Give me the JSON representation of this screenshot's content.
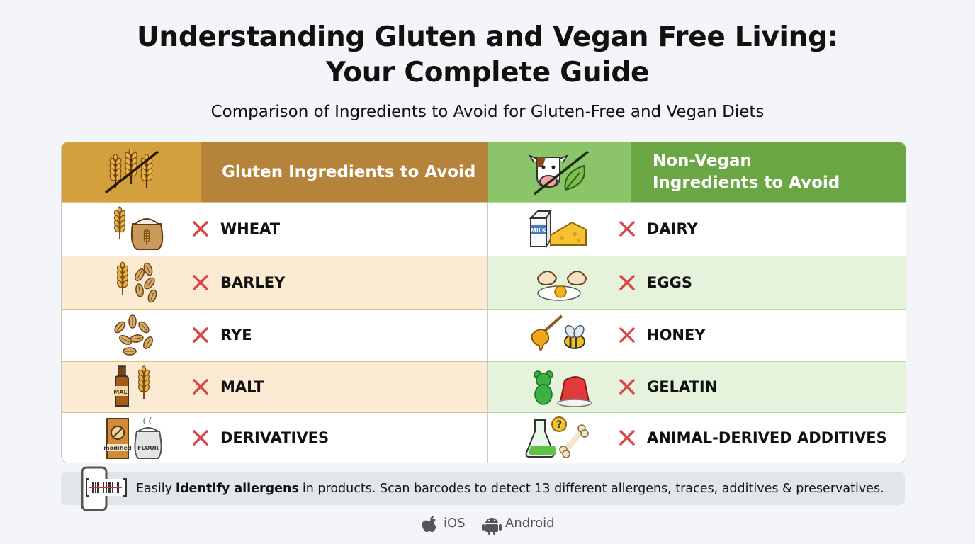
{
  "header": {
    "title_lines": [
      "Understanding Gluten and Vegan Free Living:",
      "Your Complete Guide"
    ],
    "subtitle": "Comparison of Ingredients to Avoid for Gluten-Free and Vegan Diets"
  },
  "table": {
    "columns": [
      {
        "title_lines": [
          "Gluten Ingredients to Avoid"
        ]
      },
      {
        "title_lines": [
          "Non-Vegan",
          "Ingredients to Avoid"
        ]
      }
    ],
    "rows": [
      [
        "WHEAT",
        "DAIRY"
      ],
      [
        "BARLEY",
        "EGGS"
      ],
      [
        "RYE",
        "HONEY"
      ],
      [
        "MALT",
        "GELATIN"
      ],
      [
        "DERIVATIVES",
        "ANIMAL-DERIVED ADDITIVES"
      ]
    ]
  },
  "icon_labels": {
    "milk": "MILK",
    "malt": "MALT",
    "modified": "modified",
    "flour": "FLOUR"
  },
  "footer": {
    "parts": [
      "Easily",
      "identify allergens",
      "in products. Scan barcodes to detect 13 different allergens, traces, additives & preservatives."
    ]
  },
  "platforms": [
    "iOS",
    "Android"
  ]
}
